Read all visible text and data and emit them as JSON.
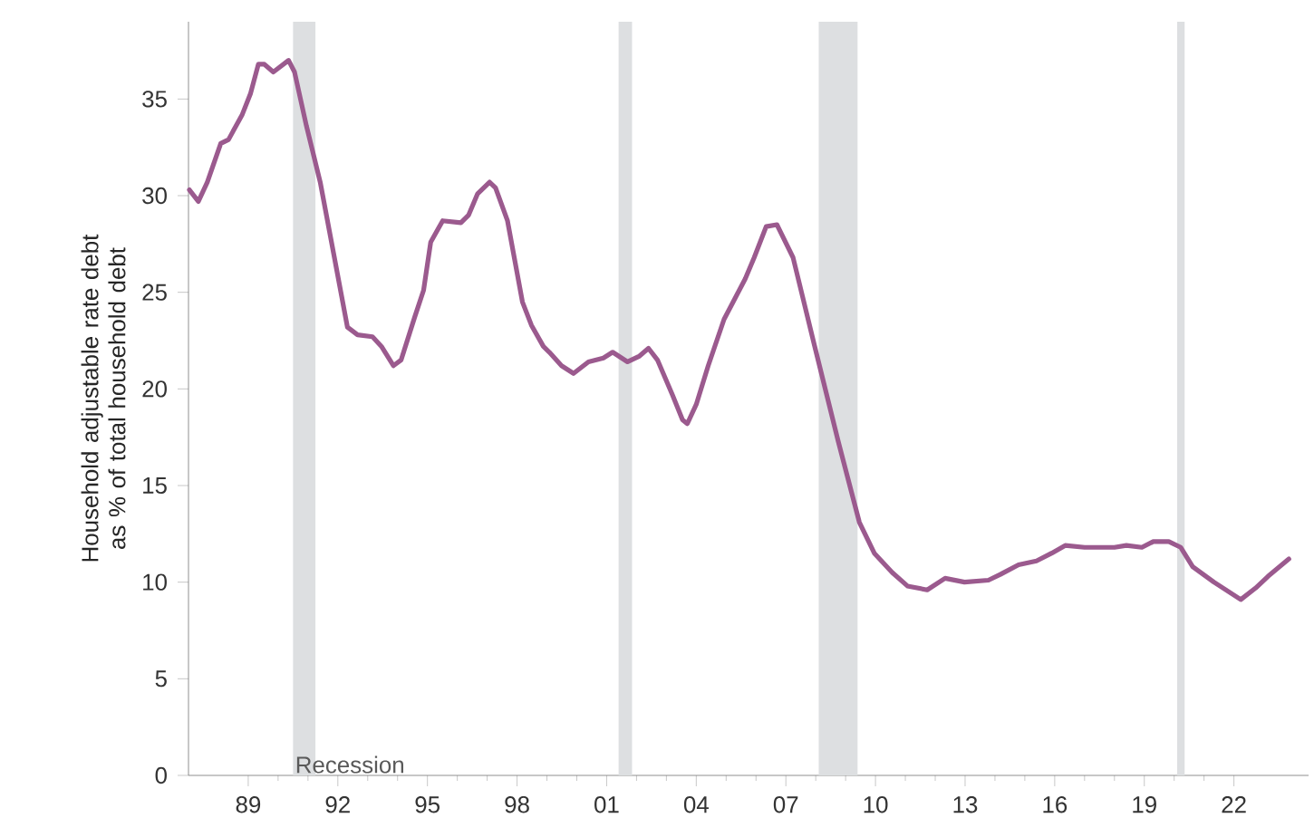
{
  "chart_data": {
    "type": "line",
    "ylabel": "Household adjustable rate debt as % of total household debt",
    "xlim": [
      1987,
      2024.5
    ],
    "ylim": [
      0,
      39
    ],
    "xticks": [
      {
        "value": 1989,
        "label": "89"
      },
      {
        "value": 1992,
        "label": "92"
      },
      {
        "value": 1995,
        "label": "95"
      },
      {
        "value": 1998,
        "label": "98"
      },
      {
        "value": 2001,
        "label": "01"
      },
      {
        "value": 2004,
        "label": "04"
      },
      {
        "value": 2007,
        "label": "07"
      },
      {
        "value": 2010,
        "label": "10"
      },
      {
        "value": 2013,
        "label": "13"
      },
      {
        "value": 2016,
        "label": "16"
      },
      {
        "value": 2019,
        "label": "19"
      },
      {
        "value": 2022,
        "label": "22"
      }
    ],
    "yticks": [
      0,
      5,
      10,
      15,
      20,
      25,
      30,
      35
    ],
    "grid": false,
    "marker": "none",
    "line_style": "solid",
    "bands": [
      {
        "axis": "x",
        "from": 1990.5,
        "to": 1991.25,
        "label": "Recession",
        "color": "#dddfe1"
      },
      {
        "axis": "x",
        "from": 2001.4,
        "to": 2001.85,
        "color": "#dddfe1"
      },
      {
        "axis": "x",
        "from": 2008.1,
        "to": 2009.4,
        "color": "#dddfe1"
      },
      {
        "axis": "x",
        "from": 2020.1,
        "to": 2020.35,
        "color": "#dddfe1"
      }
    ],
    "series": [
      {
        "color": "#9b5a8e",
        "x": [
          1987.03,
          1987.33,
          1987.63,
          1988.08,
          1988.34,
          1988.8,
          1989.08,
          1989.34,
          1989.54,
          1989.84,
          1990.35,
          1990.55,
          1990.95,
          1991.41,
          1991.86,
          1992.32,
          1992.66,
          1993.16,
          1993.46,
          1993.86,
          1994.12,
          1994.57,
          1994.87,
          1995.11,
          1995.51,
          1996.12,
          1996.38,
          1996.68,
          1997.08,
          1997.28,
          1997.68,
          1998.18,
          1998.48,
          1998.88,
          1999.08,
          1999.49,
          1999.89,
          2000.39,
          2000.89,
          2001.2,
          2001.7,
          2002.1,
          2002.4,
          2002.7,
          2003.2,
          2003.54,
          2003.7,
          2004.0,
          2004.4,
          2004.93,
          2005.64,
          2005.94,
          2006.34,
          2006.7,
          2007.24,
          2007.95,
          2008.75,
          2009.46,
          2009.96,
          2010.56,
          2011.07,
          2011.73,
          2012.33,
          2012.98,
          2013.78,
          2014.18,
          2014.79,
          2015.39,
          2015.9,
          2016.35,
          2017.0,
          2018.0,
          2018.4,
          2018.92,
          2019.3,
          2019.82,
          2020.22,
          2020.62,
          2021.33,
          2022.23,
          2022.73,
          2023.14,
          2023.84
        ],
        "values": [
          30.3,
          29.7,
          30.7,
          32.7,
          32.9,
          34.2,
          35.3,
          36.8,
          36.8,
          36.4,
          37.0,
          36.4,
          33.6,
          30.7,
          27.0,
          23.2,
          22.8,
          22.7,
          22.2,
          21.2,
          21.5,
          23.7,
          25.1,
          27.6,
          28.7,
          28.6,
          29.0,
          30.1,
          30.7,
          30.4,
          28.7,
          24.5,
          23.3,
          22.2,
          21.9,
          21.2,
          20.8,
          21.4,
          21.6,
          21.9,
          21.4,
          21.7,
          22.1,
          21.5,
          19.7,
          18.4,
          18.2,
          19.2,
          21.2,
          23.6,
          25.7,
          26.8,
          28.4,
          28.5,
          26.8,
          22.3,
          17.3,
          13.1,
          11.5,
          10.5,
          9.8,
          9.6,
          10.2,
          10.0,
          10.1,
          10.4,
          10.9,
          11.1,
          11.5,
          11.9,
          11.8,
          11.8,
          11.9,
          11.8,
          12.1,
          12.1,
          11.8,
          10.8,
          10.0,
          9.1,
          9.7,
          10.3,
          11.2
        ]
      }
    ]
  }
}
